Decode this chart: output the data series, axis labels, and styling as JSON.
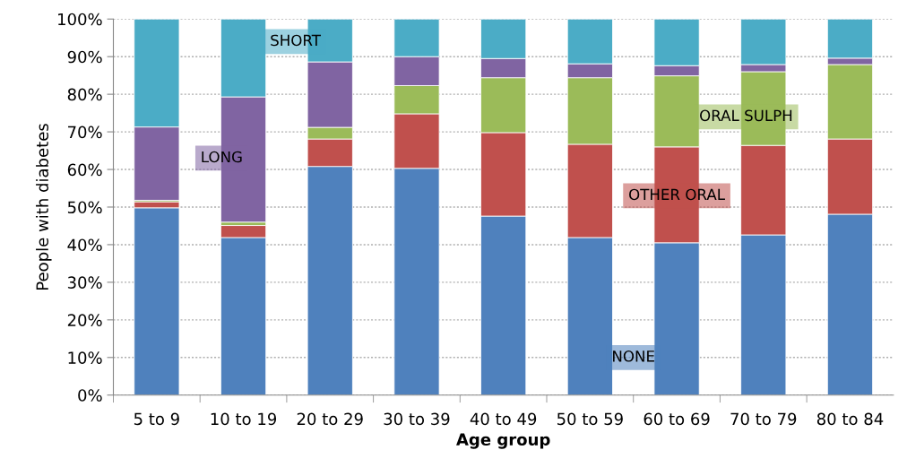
{
  "chart_data": {
    "type": "bar",
    "stacked": true,
    "xlabel": "Age group",
    "ylabel": "People with diabetes",
    "categories": [
      "5 to 9",
      "10 to 19",
      "20 to 29",
      "30 to 39",
      "40 to 49",
      "50 to 59",
      "60 to 69",
      "70 to 79",
      "80 to 84"
    ],
    "series": [
      {
        "name": "NONE",
        "color": "#4f81bd",
        "values": [
          49.8,
          41.9,
          60.8,
          60.3,
          47.6,
          41.9,
          40.5,
          42.6,
          48.1
        ]
      },
      {
        "name": "OTHER ORAL",
        "color": "#c0504d",
        "values": [
          1.6,
          3.2,
          7.3,
          14.5,
          22.2,
          24.8,
          25.5,
          23.8,
          20.0
        ]
      },
      {
        "name": "ORAL SULPH",
        "color": "#9bbb59",
        "values": [
          0.4,
          0.9,
          3.1,
          7.5,
          14.6,
          17.7,
          18.9,
          19.6,
          19.8
        ]
      },
      {
        "name": "LONG",
        "color": "#8064a2",
        "values": [
          19.5,
          33.3,
          17.4,
          7.7,
          5.1,
          3.7,
          2.7,
          1.9,
          1.7
        ]
      },
      {
        "name": "SHORT",
        "color": "#4bacc6",
        "values": [
          28.7,
          20.7,
          11.4,
          10.0,
          10.5,
          11.9,
          12.4,
          12.1,
          10.4
        ]
      }
    ],
    "ylim": [
      0,
      100
    ],
    "yticks": [
      {
        "value": 0,
        "label": "0%"
      },
      {
        "value": 10,
        "label": "10%"
      },
      {
        "value": 20,
        "label": "20%"
      },
      {
        "value": 30,
        "label": "30%"
      },
      {
        "value": 40,
        "label": "40%"
      },
      {
        "value": 50,
        "label": "50%"
      },
      {
        "value": 60,
        "label": "60%"
      },
      {
        "value": 70,
        "label": "70%"
      },
      {
        "value": 80,
        "label": "80%"
      },
      {
        "value": 90,
        "label": "90%"
      },
      {
        "value": 100,
        "label": "100%"
      }
    ],
    "grid": "y",
    "legend": false
  }
}
